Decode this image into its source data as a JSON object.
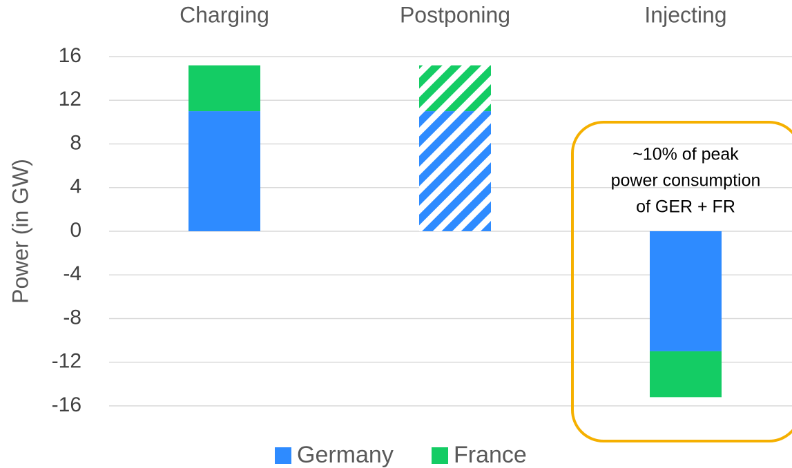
{
  "chart_data": {
    "type": "bar",
    "stacked": true,
    "categories": [
      "Charging",
      "Postponing",
      "Injecting"
    ],
    "series": [
      {
        "name": "Germany",
        "color": "#2e8bff",
        "values": [
          11,
          11,
          -11
        ]
      },
      {
        "name": "France",
        "color": "#14cc64",
        "values": [
          4.2,
          4.2,
          -4.2
        ]
      }
    ],
    "hatch": [
      false,
      true,
      false
    ],
    "ylabel": "Power (in GW)",
    "ylim": [
      -16,
      16
    ],
    "yticks": [
      -16,
      -12,
      -8,
      -4,
      0,
      4,
      8,
      12,
      16
    ],
    "grid": true,
    "legend": "bottom",
    "annotation": [
      "~10% of peak",
      "power consumption",
      "of GER + FR"
    ]
  }
}
